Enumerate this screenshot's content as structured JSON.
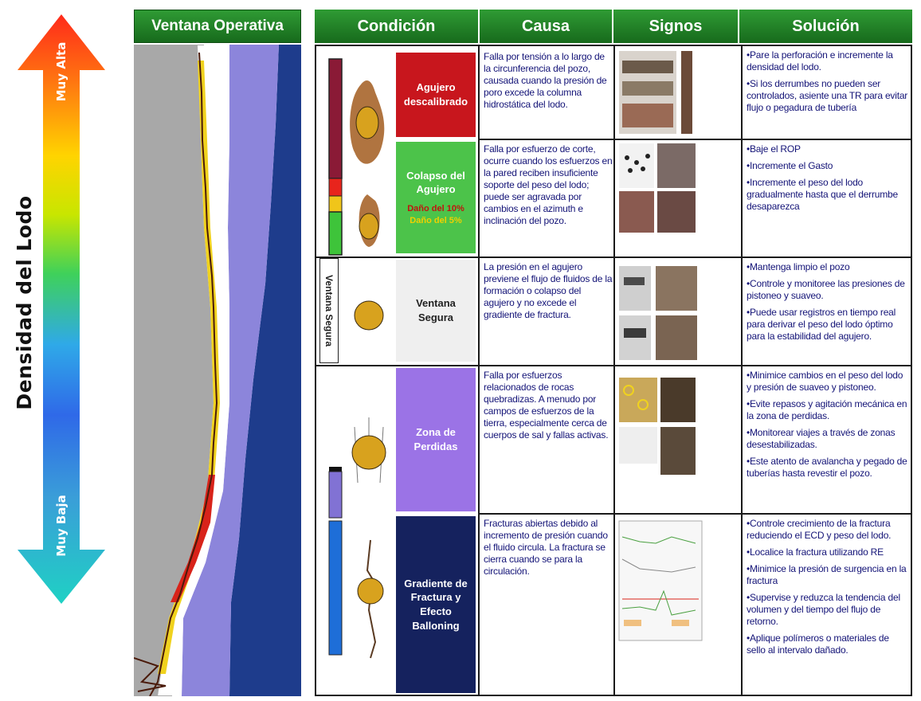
{
  "arrow": {
    "title": "Densidad del Lodo",
    "high_label": "Muy Alta",
    "low_label": "Muy Baja"
  },
  "log_panel": {
    "title": "Ventana Operativa"
  },
  "table": {
    "headers": [
      "Condición",
      "Causa",
      "Signos",
      "Solución"
    ],
    "ventana_segura_side_label": "Ventana Segura",
    "rows": [
      {
        "condition": [
          "Agujero",
          "descalibrado"
        ],
        "condition_color": "#c8161d",
        "cause": "Falla por tensión a lo largo de la circunferencia del pozo, causada cuando la presión de poro excede la columna hidrostática del lodo.",
        "solutions": [
          "•Pare la perforación e incremente la densidad del lodo.",
          "•Si los derrumbes no pueden ser controlados, asiente una TR para evitar flujo o pegadura de tubería"
        ]
      },
      {
        "condition": [
          "Colapso del",
          "Agujero"
        ],
        "condition_notes": [
          "Daño del 10%",
          "Daño del 5%"
        ],
        "condition_color": "#4cc34a",
        "cause": "Falla por esfuerzo de corte, ocurre cuando los esfuerzos en la pared reciben insuficiente soporte del peso del lodo; puede ser agravada por cambios en el azimuth e inclinación del pozo.",
        "solutions": [
          "•Baje el ROP",
          "•Incremente el Gasto",
          "•Incremente el peso del lodo gradualmente hasta que el derrumbe desaparezca"
        ]
      },
      {
        "condition": [
          "Ventana",
          "Segura"
        ],
        "condition_color": "#efefef",
        "cause": "La presión en el agujero previene el flujo de fluidos de la formación o colapso del agujero y no excede el gradiente de fractura.",
        "solutions": [
          "•Mantenga limpio el pozo",
          "•Controle y monitoree las presiones de pistoneo y suaveo.",
          "•Puede usar registros en tiempo real para derivar el peso del lodo óptimo para la estabilidad del agujero."
        ]
      },
      {
        "condition": [
          "Zona de",
          "Perdidas"
        ],
        "condition_color": "#9b73e6",
        "cause": "Falla por esfuerzos relacionados de rocas quebradizas. A menudo por campos de esfuerzos de la tierra, especialmente cerca de cuerpos de sal y fallas activas.",
        "solutions": [
          "•Minimice cambios en el peso del lodo y presión de suaveo y pistoneo.",
          "•Evite repasos y agitación mecánica en la zona de perdidas.",
          "•Monitorear viajes a través de zonas desestabilizadas.",
          "•Este atento de avalancha y pegado de tuberías hasta revestir el pozo."
        ]
      },
      {
        "condition": [
          "Gradiente de",
          "Fractura y",
          "Efecto",
          "Balloning"
        ],
        "condition_color": "#15225e",
        "cause": "Fracturas abiertas debido al incremento de presión cuando el fluido circula. La fractura se cierra cuando se para la circulación.",
        "solutions": [
          "•Controle crecimiento de la fractura reduciendo el ECD y peso del lodo.",
          "•Localice la fractura utilizando RE",
          "•Minimice la presión de surgencia en la fractura",
          "•Supervise y reduzca la tendencia del volumen y del tiempo del flujo de retorno.",
          "•Aplique polímeros o materiales de sello al intervalo dañado."
        ]
      }
    ]
  }
}
